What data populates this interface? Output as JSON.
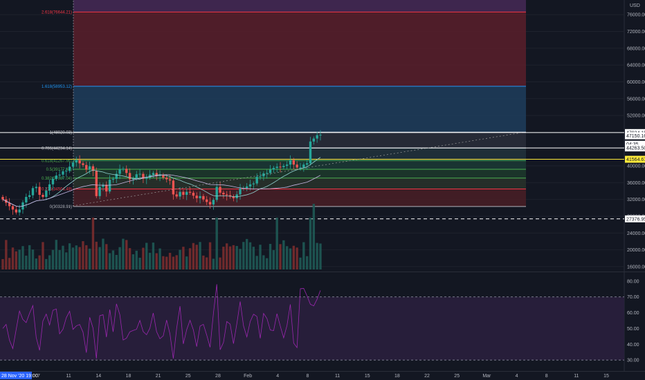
{
  "currency": "USD",
  "cursor_date": "28 Nov '20 19:00",
  "colors": {
    "background": "#131722",
    "up": "#26a69a",
    "down": "#ef5350",
    "rsi": "#9c27b0",
    "fib_blue": "#2196f3",
    "fib_red": "#f23645",
    "fib_purple": "#9c27b0",
    "fib_green": "#4caf50",
    "highlight": "#ffeb3b"
  },
  "chart_data": {
    "type": "candlestick",
    "price_axis": {
      "ticks": [
        "76000.00",
        "72000.00",
        "68000.00",
        "64000.00",
        "60000.00",
        "56000.00",
        "52000.00",
        "48000.00",
        "44000.00",
        "40000.00",
        "36000.00",
        "32000.00",
        "28000.00",
        "24000.00",
        "20000.00",
        "16000.00"
      ],
      "range": [
        15000,
        79000
      ]
    },
    "rsi_axis": {
      "ticks": [
        "80.00",
        "70.00",
        "60.00",
        "50.00",
        "40.00",
        "30.00"
      ],
      "range": [
        27,
        83
      ],
      "bands": [
        70,
        30
      ]
    },
    "time_axis": [
      "7",
      "11",
      "14",
      "18",
      "21",
      "25",
      "28",
      "Feb",
      "4",
      "8",
      "11",
      "15",
      "18",
      "22",
      "25",
      "Mar",
      "4",
      "8",
      "11",
      "15"
    ],
    "fib_levels": [
      {
        "label": "2.618(76644.21)",
        "value": 76644.21,
        "color": "#f23645"
      },
      {
        "label": "1.618(58953.12)",
        "value": 58953.12,
        "color": "#2196f3"
      },
      {
        "label": "1(48020.03)",
        "value": 48020.03,
        "color": "#d1d4dc"
      },
      {
        "label": "0.786(44234.14)",
        "value": 44234.14,
        "color": "#b2b5be"
      },
      {
        "label": "0.618(41267.96)",
        "value": 41267.96,
        "color": "#4caf50"
      },
      {
        "label": "0.5(39177.49)",
        "value": 39177.49,
        "color": "#4caf50"
      },
      {
        "label": "0.382(37087.04)",
        "value": 37087.04,
        "color": "#4caf50"
      },
      {
        "label": "0.236(34504.49)",
        "value": 34504.49,
        "color": "#f23645"
      },
      {
        "label": "0(30328.91)",
        "value": 30328.91,
        "color": "#b2b5be"
      }
    ],
    "price_tags": [
      {
        "label": "47934.15",
        "value": 47934.15,
        "bg": "#ffffff",
        "fg": "#131722"
      },
      {
        "label": "47150.16",
        "value": 47150.16,
        "bg": "#ffffff",
        "fg": "#131722"
      },
      {
        "label": "04:35",
        "value": 45150,
        "bg": "#ffffff",
        "fg": "#131722"
      },
      {
        "label": "44263.50",
        "value": 44263.5,
        "bg": "#ffffff",
        "fg": "#131722"
      },
      {
        "label": "41564.67",
        "value": 41564.67,
        "bg": "#ffeb3b",
        "fg": "#131722"
      },
      {
        "label": "27376.95",
        "value": 27376.95,
        "bg": "#ffffff",
        "fg": "#131722"
      }
    ],
    "horizontal_lines": [
      {
        "value": 47934.15,
        "style": "solid",
        "color": "#ffffff"
      },
      {
        "value": 44263.5,
        "style": "solid",
        "color": "#ffffff"
      },
      {
        "value": 41564.67,
        "style": "solid",
        "color": "#ffeb3b"
      },
      {
        "value": 27376.95,
        "style": "dashed",
        "color": "#ffffff"
      }
    ],
    "close_series": [
      32000,
      31200,
      30400,
      29600,
      28900,
      29600,
      31300,
      32600,
      33000,
      34700,
      35000,
      33100,
      32600,
      34100,
      35600,
      36900,
      37700,
      37900,
      38700,
      38800,
      39800,
      40800,
      41400,
      40600,
      40200,
      39100,
      39900,
      38800,
      32800,
      35000,
      35500,
      33900,
      36700,
      36900,
      38100,
      39200,
      39300,
      38300,
      36800,
      37000,
      38000,
      38100,
      36900,
      37200,
      37900,
      38300,
      37600,
      37800,
      37200,
      36800,
      36500,
      33200,
      32700,
      33800,
      33100,
      33800,
      33600,
      32900,
      32300,
      32800,
      32000,
      31400,
      30800,
      31900,
      35000,
      33600,
      33200,
      33000,
      32700,
      32300,
      33200,
      34600,
      34700,
      35100,
      35600,
      35800,
      37400,
      37500,
      38200,
      38300,
      39100,
      39500,
      39800,
      39700,
      40000,
      40300,
      41400,
      40300,
      39600,
      39600,
      40300,
      40600,
      45800,
      46500,
      47300,
      47400
    ]
  }
}
